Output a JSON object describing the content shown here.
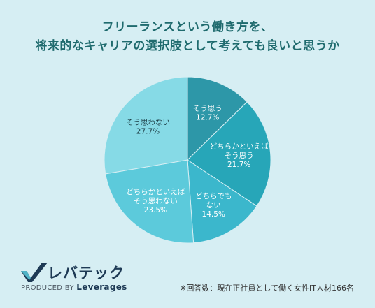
{
  "chart_data": {
    "type": "pie",
    "title_lines": [
      "フリーランスという働き方を、",
      "将来的なキャリアの選択肢として考えても良いと思うか"
    ],
    "slices": [
      {
        "label_lines": [
          "そう思う"
        ],
        "value": 12.7,
        "value_label": "12.7%",
        "color": "#2d97a8"
      },
      {
        "label_lines": [
          "どちらかといえば",
          "そう思う"
        ],
        "value": 21.7,
        "value_label": "21.7%",
        "color": "#27a6b8"
      },
      {
        "label_lines": [
          "どちらでも",
          "ない"
        ],
        "value": 14.5,
        "value_label": "14.5%",
        "color": "#3bb7cc"
      },
      {
        "label_lines": [
          "どちらかといえば",
          "そう思わない"
        ],
        "value": 23.5,
        "value_label": "23.5%",
        "color": "#5ccadb"
      },
      {
        "label_lines": [
          "そう思わない"
        ],
        "value": 27.7,
        "value_label": "27.7%",
        "color": "#86dae6"
      }
    ]
  },
  "logo": {
    "brand": "レバテック",
    "produced_by": "PRODUCED BY",
    "company": "Leverages"
  },
  "footnote": "※回答数：現在正社員として働く女性IT人材166名"
}
